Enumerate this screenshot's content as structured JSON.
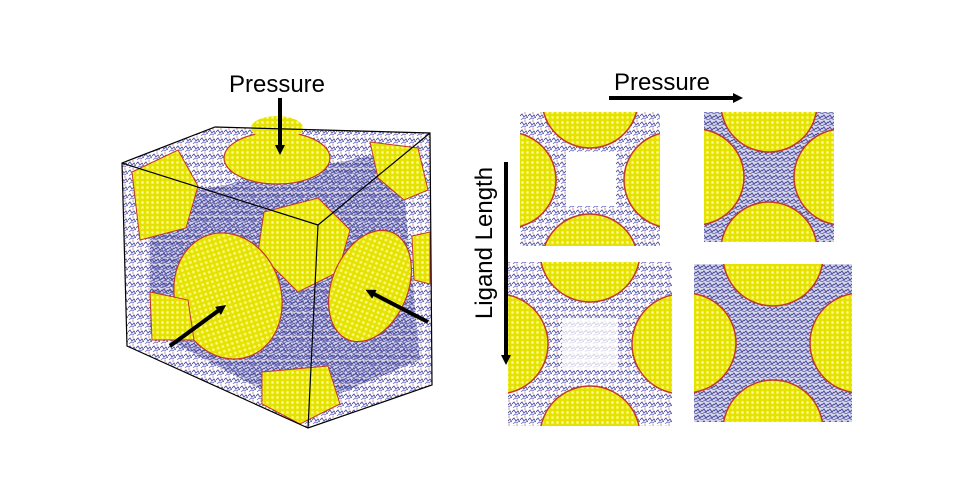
{
  "labels": {
    "pressure_cube": "Pressure",
    "pressure_top": "Pressure",
    "ligand_length": "Ligand Length"
  },
  "colors": {
    "nanoparticle": "#e2e000",
    "nanoparticle_shade": "#b8b400",
    "particle_edge": "#c0392b",
    "ligand": "#5a5aa8",
    "ligand_dark": "#3e3e7e",
    "arrow": "#000000"
  },
  "panels": [
    {
      "row": 1,
      "col": 1,
      "ligand": "short",
      "pressure": "low"
    },
    {
      "row": 1,
      "col": 2,
      "ligand": "short",
      "pressure": "high"
    },
    {
      "row": 2,
      "col": 1,
      "ligand": "long",
      "pressure": "low"
    },
    {
      "row": 2,
      "col": 2,
      "ligand": "long",
      "pressure": "high"
    }
  ]
}
